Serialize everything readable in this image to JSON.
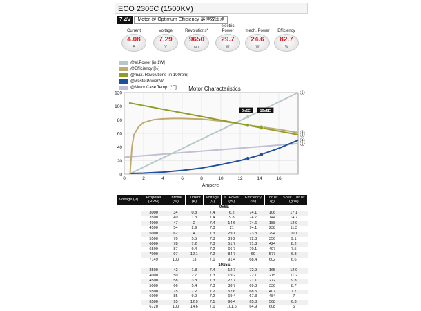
{
  "header": {
    "title": "ECO 2306C (1500KV)",
    "voltage_tag": "7.4V",
    "mode_label": "Motor @ Optimum Efficiency  最佳效率点"
  },
  "metrics": [
    {
      "label": "Current",
      "value": "4.08",
      "unit": "A"
    },
    {
      "label": "Voltage",
      "value": "7.29",
      "unit": "V"
    },
    {
      "label": "Revolutions*",
      "value": "9650",
      "unit": "rpm"
    },
    {
      "label": "electric Power",
      "value": "29.7",
      "unit": "W"
    },
    {
      "label": "mech. Power",
      "value": "24.6",
      "unit": "W"
    },
    {
      "label": "Efficiency",
      "value": "82.7",
      "unit": "%"
    }
  ],
  "legend": [
    {
      "label": "@el.Power [in 1W]",
      "color": "#b7c7c9"
    },
    {
      "label": "@Efficiency [%]",
      "color": "#c2aa6e"
    },
    {
      "label": "@max. Revolutions [in 100rpm]",
      "color": "#8d9f27"
    },
    {
      "label": "@waste Power[W]",
      "color": "#1e4f9b"
    },
    {
      "label": "@Motor Case Temp. [°C]",
      "color": "#bfbfd6"
    }
  ],
  "chart_data": {
    "type": "line",
    "title": "Motor Characteristics",
    "xlabel": "Ampere",
    "ylabel": "",
    "xlim": [
      0,
      18
    ],
    "ylim": [
      0,
      120
    ],
    "x_ticks": [
      0,
      2,
      4,
      6,
      8,
      10,
      12,
      14,
      16
    ],
    "y_ticks": [
      0,
      20,
      40,
      60,
      80,
      100,
      120
    ],
    "grid": true,
    "series": [
      {
        "name": "@el.Power [in 1W]",
        "color": "#b7c7c9",
        "marker": "1",
        "x": [
          0.5,
          18
        ],
        "y": [
          0,
          120
        ]
      },
      {
        "name": "@Efficiency [%]",
        "color": "#c2aa6e",
        "marker": "2",
        "x": [
          0.6,
          0.8,
          1,
          1.5,
          2,
          3,
          4,
          5,
          6,
          8,
          10,
          12,
          14,
          16,
          18
        ],
        "y": [
          0,
          40,
          58,
          70,
          76,
          80,
          81.5,
          82,
          82,
          81,
          78,
          74,
          70,
          66,
          61
        ]
      },
      {
        "name": "@max. Revolutions [in 100rpm]",
        "color": "#8d9f27",
        "marker": "3",
        "x": [
          0.5,
          18
        ],
        "y": [
          105,
          58
        ]
      },
      {
        "name": "@waste Power[W]",
        "color": "#1e4f9b",
        "marker": "4",
        "x": [
          0.6,
          2,
          4,
          6,
          8,
          10,
          12,
          14,
          16,
          18
        ],
        "y": [
          1,
          1.5,
          3,
          5.5,
          9,
          14,
          20,
          28,
          38,
          50
        ]
      },
      {
        "name": "@Motor Case Temp. [°C]",
        "color": "#bfbfd6",
        "marker": "5",
        "x": [
          0,
          18
        ],
        "y": [
          25,
          45
        ]
      }
    ],
    "annotations": [
      {
        "text": "9x6E",
        "x": 12.6,
        "y": 93
      },
      {
        "text": "10x5E",
        "x": 14.6,
        "y": 93
      }
    ],
    "points": [
      {
        "x": 12.8,
        "color": "#c2aa6e"
      },
      {
        "x": 14.2,
        "color": "#c2aa6e"
      },
      {
        "x": 12.8,
        "color": "#8d9f27"
      },
      {
        "x": 14.2,
        "color": "#8d9f27"
      },
      {
        "x": 12.8,
        "color": "#1e4f9b"
      },
      {
        "x": 14.2,
        "color": "#1e4f9b"
      },
      {
        "x": 12.8,
        "color": "#b7c7c9"
      },
      {
        "x": 14.2,
        "color": "#b7c7c9"
      }
    ]
  },
  "table": {
    "headers": [
      "Voltage (V)",
      "Propeller (RPM)",
      "Throttle (%)",
      "Current (A)",
      "Voltage (V)",
      "el. Power (W)",
      "Efficiency (%)",
      "Thrust (g)",
      "Spec. Thrust (g/W)"
    ],
    "group_label_1": "7.4V",
    "group_label_2": "(2S LIPO)",
    "sections": [
      {
        "name": "9x6E",
        "rows": [
          [
            "3000",
            "34",
            "0.8",
            "7.4",
            "6.2",
            "74.1",
            "106",
            "17.1"
          ],
          [
            "3500",
            "40",
            "1.3",
            "7.4",
            "9.8",
            "74.7",
            "144",
            "14.7"
          ],
          [
            "4000",
            "47",
            "2",
            "7.4",
            "14.6",
            "74.6",
            "188",
            "12.9"
          ],
          [
            "4500",
            "54",
            "2.9",
            "7.3",
            "21",
            "74.1",
            "238",
            "11.3"
          ],
          [
            "5000",
            "62",
            "4",
            "7.3",
            "29.1",
            "73.3",
            "294",
            "10.1"
          ],
          [
            "5500",
            "70",
            "5.5",
            "7.3",
            "39.2",
            "72.3",
            "356",
            "9.1"
          ],
          [
            "6000",
            "78",
            "7.2",
            "7.3",
            "51.7",
            "71.3",
            "424",
            "8.2"
          ],
          [
            "6500",
            "87",
            "9.4",
            "7.2",
            "66.7",
            "70.1",
            "497",
            "7.5"
          ],
          [
            "7000",
            "97",
            "12.1",
            "7.2",
            "84.7",
            "69",
            "577",
            "6.8"
          ],
          [
            "7149",
            "100",
            "13",
            "7.1",
            "91.4",
            "68.4",
            "602",
            "6.6"
          ]
        ]
      },
      {
        "name": "10x5E",
        "rows": [
          [
            "3500",
            "42",
            "1.8",
            "7.4",
            "12.7",
            "72.9",
            "165",
            "12.9"
          ],
          [
            "4000",
            "50",
            "2.7",
            "7.3",
            "19.2",
            "72.1",
            "215",
            "11.2"
          ],
          [
            "4500",
            "58",
            "3.8",
            "7.3",
            "27.7",
            "71.1",
            "272",
            "9.8"
          ],
          [
            "5000",
            "66",
            "5.4",
            "7.3",
            "38.7",
            "69.8",
            "336",
            "8.7"
          ],
          [
            "5500",
            "75",
            "7.2",
            "7.2",
            "52.6",
            "68.5",
            "407",
            "7.7"
          ],
          [
            "6000",
            "85",
            "9.9",
            "7.2",
            "69.4",
            "67.3",
            "484",
            "7"
          ],
          [
            "6500",
            "95",
            "12.9",
            "7.1",
            "90.4",
            "65.8",
            "568",
            "6.3"
          ],
          [
            "6720",
            "100",
            "14.6",
            "7.1",
            "101.6",
            "64.9",
            "608",
            "6"
          ]
        ]
      }
    ]
  }
}
